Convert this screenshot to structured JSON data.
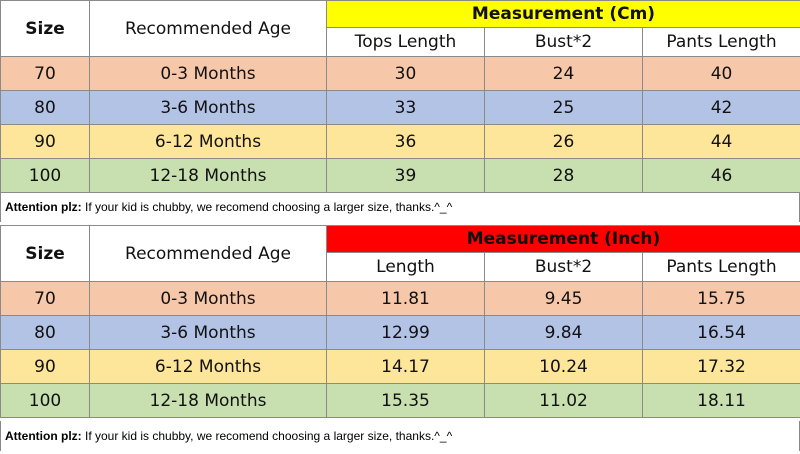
{
  "headers": {
    "size": "Size",
    "age": "Recommended Age",
    "length_label_cm": "Tops Length",
    "length_label_inch": "Length",
    "bust": "Bust*2",
    "pants": "Pants Length"
  },
  "tables": [
    {
      "measurement_title": "Measurement (Cm)",
      "title_bg": "#ffff00",
      "rows": [
        {
          "size": "70",
          "age": "0-3 Months",
          "tops": "30",
          "bust": "24",
          "pants": "40"
        },
        {
          "size": "80",
          "age": "3-6 Months",
          "tops": "33",
          "bust": "25",
          "pants": "42"
        },
        {
          "size": "90",
          "age": "6-12 Months",
          "tops": "36",
          "bust": "26",
          "pants": "44"
        },
        {
          "size": "100",
          "age": "12-18 Months",
          "tops": "39",
          "bust": "28",
          "pants": "46"
        }
      ]
    },
    {
      "measurement_title": "Measurement (Inch)",
      "title_bg": "#ff0000",
      "rows": [
        {
          "size": "70",
          "age": "0-3 Months",
          "tops": "11.81",
          "bust": "9.45",
          "pants": "15.75"
        },
        {
          "size": "80",
          "age": "3-6 Months",
          "tops": "12.99",
          "bust": "9.84",
          "pants": "16.54"
        },
        {
          "size": "90",
          "age": "6-12 Months",
          "tops": "14.17",
          "bust": "10.24",
          "pants": "17.32"
        },
        {
          "size": "100",
          "age": "12-18 Months",
          "tops": "15.35",
          "bust": "11.02",
          "pants": "18.11"
        }
      ]
    }
  ],
  "note": {
    "label": "Attention plz:",
    "text": " If your kid is chubby, we recomend choosing a larger size, thanks.^_^"
  },
  "row_colors": [
    "#f7c7a9",
    "#b3c3e6",
    "#fde59a",
    "#c8e0b0"
  ]
}
